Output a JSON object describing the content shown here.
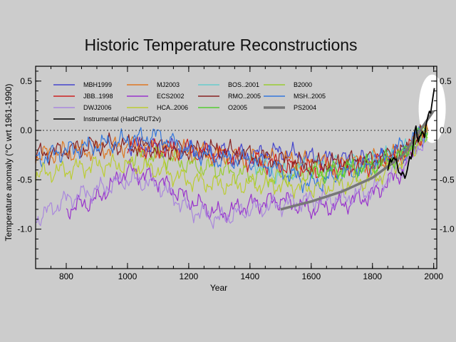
{
  "chart_data": {
    "type": "line",
    "title": "Historic Temperature Reconstructions",
    "xlabel": "Year",
    "ylabel": "Temperature anomaly  (°C wrt 1961-1990)",
    "xlim": [
      700,
      2010
    ],
    "ylim": [
      -1.4,
      0.65
    ],
    "x_ticks": [
      "800",
      "1000",
      "1200",
      "1400",
      "1600",
      "1800",
      "2000"
    ],
    "y_ticks": [
      "0.5",
      "0.0",
      "-0.5",
      "-1.0"
    ],
    "zero_line": "dotted",
    "grid": false,
    "legend_position": "top-left",
    "series": [
      {
        "name": "MBH1999",
        "color": "#4444cc",
        "x": [
          1000,
          1100,
          1200,
          1300,
          1400,
          1500,
          1600,
          1700,
          1800,
          1850,
          1900,
          1950,
          1980
        ],
        "y": [
          -0.15,
          -0.18,
          -0.2,
          -0.22,
          -0.25,
          -0.22,
          -0.28,
          -0.3,
          -0.3,
          -0.28,
          -0.25,
          -0.1,
          0.0
        ]
      },
      {
        "name": "MJ2003",
        "color": "#dd7722",
        "x": [
          700,
          800,
          900,
          1000,
          1100,
          1200,
          1300,
          1400,
          1500,
          1600,
          1700,
          1800,
          1900,
          1980
        ],
        "y": [
          -0.25,
          -0.22,
          -0.2,
          -0.15,
          -0.2,
          -0.22,
          -0.25,
          -0.28,
          -0.3,
          -0.33,
          -0.35,
          -0.3,
          -0.25,
          0.0
        ]
      },
      {
        "name": "BOS..2001",
        "color": "#66cccc",
        "x": [
          1400,
          1500,
          1600,
          1700,
          1800,
          1900,
          1980
        ],
        "y": [
          -0.3,
          -0.45,
          -0.35,
          -0.35,
          -0.3,
          -0.22,
          -0.05
        ]
      },
      {
        "name": "B2000",
        "color": "#99cc33",
        "x": [
          1000,
          1100,
          1200,
          1300,
          1400,
          1500,
          1600,
          1700,
          1800,
          1900,
          1980
        ],
        "y": [
          -0.28,
          -0.25,
          -0.35,
          -0.4,
          -0.45,
          -0.48,
          -0.42,
          -0.4,
          -0.38,
          -0.25,
          0.0
        ]
      },
      {
        "name": "JBB..1998",
        "color": "#cc2222",
        "x": [
          1000,
          1100,
          1200,
          1300,
          1400,
          1500,
          1600,
          1700,
          1800,
          1900,
          1980
        ],
        "y": [
          -0.15,
          -0.18,
          -0.2,
          -0.25,
          -0.3,
          -0.35,
          -0.4,
          -0.38,
          -0.35,
          -0.22,
          0.0
        ]
      },
      {
        "name": "ECS2002",
        "color": "#9933cc",
        "x": [
          800,
          900,
          1000,
          1100,
          1200,
          1300,
          1400,
          1500,
          1600,
          1700,
          1800,
          1900,
          1950
        ],
        "y": [
          -0.8,
          -0.7,
          -0.4,
          -0.5,
          -0.7,
          -0.85,
          -0.75,
          -0.7,
          -0.8,
          -0.75,
          -0.65,
          -0.4,
          -0.1
        ]
      },
      {
        "name": "RMO..2005",
        "color": "#882222",
        "x": [
          700,
          800,
          900,
          1000,
          1100,
          1200,
          1300,
          1400,
          1500,
          1600,
          1700,
          1800,
          1900,
          1980
        ],
        "y": [
          -0.25,
          -0.2,
          -0.15,
          -0.15,
          -0.18,
          -0.2,
          -0.2,
          -0.25,
          -0.3,
          -0.35,
          -0.32,
          -0.3,
          -0.22,
          0.0
        ]
      },
      {
        "name": "MSH..2005",
        "color": "#3377dd",
        "x": [
          700,
          800,
          900,
          1000,
          1100,
          1200,
          1300,
          1400,
          1500,
          1600,
          1700,
          1800,
          1900,
          1980
        ],
        "y": [
          -0.3,
          -0.2,
          -0.15,
          -0.1,
          -0.05,
          -0.2,
          -0.3,
          -0.3,
          -0.4,
          -0.55,
          -0.45,
          -0.35,
          -0.15,
          0.0
        ]
      },
      {
        "name": "DWJ2006",
        "color": "#aa88dd",
        "x": [
          700,
          800,
          900,
          1000,
          1100,
          1200,
          1300,
          1400,
          1500,
          1600,
          1700,
          1800,
          1900,
          1980
        ],
        "y": [
          -0.9,
          -0.7,
          -0.6,
          -0.5,
          -0.55,
          -0.8,
          -0.9,
          -0.8,
          -0.75,
          -0.7,
          -0.7,
          -0.6,
          -0.35,
          -0.05
        ]
      },
      {
        "name": "HCA..2006",
        "color": "#bbcc33",
        "x": [
          700,
          800,
          900,
          1000,
          1100,
          1200,
          1300,
          1400,
          1500,
          1600,
          1700,
          1800,
          1900,
          1980
        ],
        "y": [
          -0.45,
          -0.4,
          -0.35,
          -0.35,
          -0.4,
          -0.5,
          -0.55,
          -0.55,
          -0.55,
          -0.58,
          -0.55,
          -0.5,
          -0.3,
          0.0
        ]
      },
      {
        "name": "O2005",
        "color": "#55cc33",
        "x": [
          1600,
          1700,
          1800,
          1850,
          1900,
          1950,
          1980
        ],
        "y": [
          -0.45,
          -0.4,
          -0.35,
          -0.3,
          -0.25,
          -0.05,
          0.05
        ]
      },
      {
        "name": "PS2004",
        "color": "#777777",
        "x": [
          1500,
          1600,
          1700,
          1800,
          1900,
          2000
        ],
        "y": [
          -0.8,
          -0.72,
          -0.62,
          -0.48,
          -0.25,
          0.2
        ]
      },
      {
        "name": "Instrumental (HadCRUT2v)",
        "color": "#000000",
        "x": [
          1850,
          1870,
          1890,
          1910,
          1930,
          1940,
          1950,
          1960,
          1970,
          1980,
          1990,
          2000,
          2004
        ],
        "y": [
          -0.38,
          -0.3,
          -0.4,
          -0.45,
          -0.25,
          0.05,
          -0.05,
          -0.02,
          -0.05,
          0.08,
          0.2,
          0.38,
          0.52
        ]
      }
    ]
  }
}
